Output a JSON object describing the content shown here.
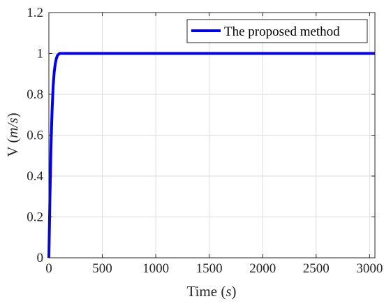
{
  "chart_data": {
    "type": "line",
    "title": "",
    "xlabel": {
      "text": "Time ",
      "unit": "s"
    },
    "ylabel": {
      "text": "V ",
      "unit": "m/s"
    },
    "xlim": [
      0,
      3050
    ],
    "ylim": [
      0,
      1.2
    ],
    "xticks": [
      0,
      500,
      1000,
      1500,
      2000,
      2500,
      3000
    ],
    "yticks": [
      0,
      0.2,
      0.4,
      0.6,
      0.8,
      1,
      1.2
    ],
    "xtick_labels": [
      "0",
      "500",
      "1000",
      "1500",
      "2000",
      "2500",
      "3000"
    ],
    "ytick_labels": [
      "0",
      "0.2",
      "0.4",
      "0.6",
      "0.8",
      "1",
      "1.2"
    ],
    "grid": true,
    "legend_position": "top-right",
    "series": [
      {
        "name": "The proposed method",
        "color": "#0000ee",
        "x": [
          0,
          10,
          20,
          30,
          40,
          50,
          60,
          70,
          80,
          90,
          100,
          120,
          150,
          200,
          300,
          500,
          1000,
          1500,
          2000,
          2500,
          3000,
          3050
        ],
        "y": [
          0,
          0.3,
          0.55,
          0.72,
          0.84,
          0.91,
          0.95,
          0.975,
          0.99,
          0.995,
          1.0,
          1.0,
          1.0,
          1.0,
          1.0,
          1.0,
          1.0,
          1.0,
          1.0,
          1.0,
          1.0,
          1.0
        ]
      }
    ]
  }
}
